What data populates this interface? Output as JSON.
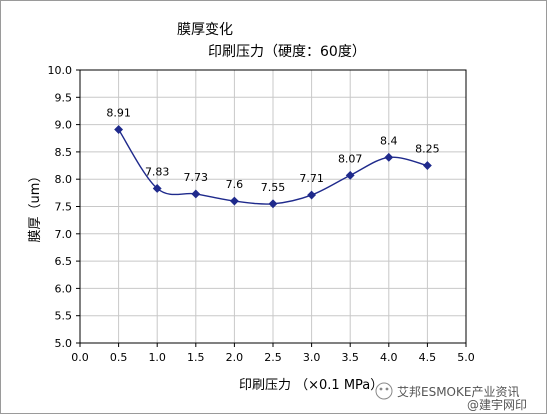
{
  "chart_data": {
    "type": "line",
    "title": "膜厚变化",
    "subtitle": "印刷压力（硬度：60度）",
    "xlabel": "印刷压力 （×0.1 MPa）",
    "ylabel": "膜厚（um）",
    "xlim": [
      0.0,
      5.0
    ],
    "ylim": [
      5.0,
      10.0
    ],
    "x_ticks": [
      "0.0",
      "0.5",
      "1.0",
      "1.5",
      "2.0",
      "2.5",
      "3.0",
      "3.5",
      "4.0",
      "4.5",
      "5.0"
    ],
    "y_ticks": [
      "5.0",
      "5.5",
      "6.0",
      "6.5",
      "7.0",
      "7.5",
      "8.0",
      "8.5",
      "9.0",
      "9.5",
      "10.0"
    ],
    "grid": true,
    "series": [
      {
        "x": [
          0.5,
          1.0,
          1.5,
          2.0,
          2.5,
          3.0,
          3.5,
          4.0,
          4.5
        ],
        "values": [
          8.91,
          7.83,
          7.73,
          7.6,
          7.55,
          7.71,
          8.07,
          8.4,
          8.25
        ],
        "labels": [
          "8.91",
          "7.83",
          "7.73",
          "7.6",
          "7.55",
          "7.71",
          "8.07",
          "8.4",
          "8.25"
        ],
        "color": "#1f2a8c"
      }
    ]
  },
  "watermark": {
    "text": "艾邦ESMOKE产业资讯",
    "sub": "@建宇网印"
  }
}
